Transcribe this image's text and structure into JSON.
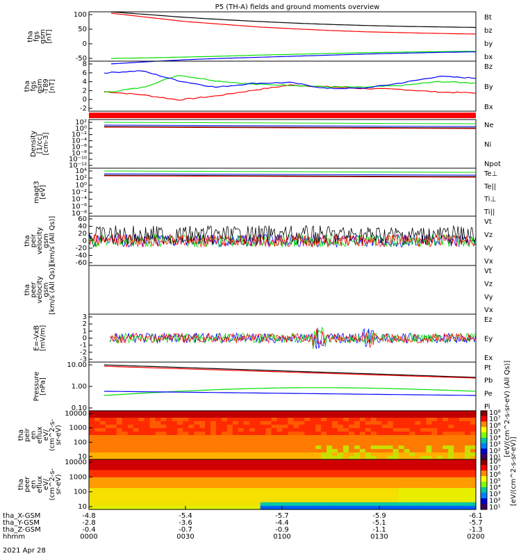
{
  "title": "P5 (TH-A) fields and ground moments overview",
  "date": "2021 Apr 28",
  "colors": {
    "black": "#000000",
    "red": "#ff0000",
    "green": "#00dd00",
    "blue": "#0000ff"
  },
  "xaxis": {
    "rows": [
      {
        "label": "tha_X-GSM",
        "values": [
          "-4.8",
          "-5.4",
          "-5.7",
          "-5.9",
          "-6.1"
        ]
      },
      {
        "label": "tha_Y-GSM",
        "values": [
          "-2.8",
          "-3.6",
          "-4.4",
          "-5.1",
          "-5.7"
        ]
      },
      {
        "label": "tha_Z-GSM",
        "values": [
          "-0.4",
          "-0.7",
          "-0.9",
          "-1.1",
          "-1.3"
        ]
      },
      {
        "label": "hhmm",
        "values": [
          "0000",
          "0030",
          "0100",
          "0130",
          "0200"
        ]
      }
    ]
  },
  "chart_data": [
    {
      "id": "fgs",
      "type": "line",
      "ylabel": [
        "tha",
        "fgs",
        "gsm",
        "[nT]"
      ],
      "yticks": [
        "100",
        "50",
        "0",
        "-50"
      ],
      "ylim": [
        -70,
        110
      ],
      "legend": [
        "Bt",
        "bz",
        "by",
        "bx"
      ],
      "series": [
        {
          "name": "Bt",
          "values": [
            110,
            100,
            90,
            82,
            75,
            69,
            64,
            60,
            57,
            55,
            53
          ]
        },
        {
          "name": "bz",
          "values": [
            105,
            90,
            75,
            65,
            55,
            48,
            42,
            37,
            34,
            31,
            29
          ]
        },
        {
          "name": "by",
          "values": [
            -60,
            -58,
            -55,
            -52,
            -48,
            -45,
            -42,
            -39,
            -37,
            -35,
            -34
          ]
        },
        {
          "name": "bx",
          "values": [
            -80,
            -72,
            -65,
            -60,
            -56,
            -52,
            -48,
            -44,
            -41,
            -38,
            -36
          ]
        }
      ]
    },
    {
      "id": "fgs-t89",
      "type": "line",
      "ylabel": [
        "tha",
        "fgs",
        "gsm",
        "-T89",
        "[nT]"
      ],
      "yticks": [
        "8",
        "6",
        "4",
        "2",
        "0",
        "-2"
      ],
      "ylim": [
        -3,
        8.5
      ],
      "legend": [
        "Bz",
        "By",
        "Bx"
      ],
      "series": [
        {
          "name": "Bz",
          "values": [
            1.5,
            0.8,
            -0.4,
            0.5,
            1.8,
            3.0,
            2.6,
            2.2,
            2.0,
            1.4,
            1.2
          ]
        },
        {
          "name": "By",
          "values": [
            1.3,
            2.4,
            5.3,
            4.0,
            3.2,
            3.0,
            2.6,
            2.5,
            2.9,
            3.8,
            3.5
          ]
        },
        {
          "name": "Bx",
          "values": [
            5.8,
            6.3,
            4.0,
            2.5,
            3.4,
            3.6,
            2.2,
            2.3,
            3.5,
            5.0,
            4.6
          ]
        }
      ]
    },
    {
      "id": "density",
      "type": "line",
      "ylabel": [
        "Density",
        "[1/cc]",
        "[cm-3]"
      ],
      "yticks": [
        "10²",
        "10⁰",
        "10⁻²",
        "10⁻⁴",
        "10⁻⁶",
        "10⁻⁸",
        "10⁻¹⁰",
        "10⁻¹²"
      ],
      "legend": [
        "Ne",
        "Ni",
        "Npot"
      ]
    },
    {
      "id": "temperature",
      "type": "line",
      "ylabel": [
        "magt3",
        "[eV]"
      ],
      "yticks": [
        "10⁴",
        "10²",
        "10⁰",
        "10⁻²",
        "10⁻⁴",
        "10⁻⁶",
        "10⁻⁸"
      ],
      "legend": [
        "Te⊥",
        "Te||",
        "Ti⊥",
        "Ti||"
      ]
    },
    {
      "id": "peir-velocity",
      "type": "line",
      "ylabel": [
        "tha",
        "peir",
        "velocity",
        "gsm",
        "[km/s (All Qs)]"
      ],
      "yticks": [
        "60",
        "40",
        "20",
        "0",
        "-20",
        "-40",
        "-60"
      ],
      "ylim": [
        -60,
        60
      ],
      "legend": [
        "Vt",
        "Vz",
        "Vy",
        "Vx"
      ]
    },
    {
      "id": "peer-velocity",
      "type": "line",
      "ylabel": [
        "tha",
        "peer",
        "velocity",
        "gsm",
        "[km/s (All Qs)]"
      ],
      "yticks": [],
      "legend": [
        "Vt",
        "Vz",
        "Vy",
        "Vx"
      ]
    },
    {
      "id": "e-field",
      "type": "line",
      "ylabel": [
        "E=-VxB",
        "[mV/m]"
      ],
      "yticks": [
        "3",
        "2",
        "1",
        "0",
        "-1",
        "-2",
        "-3"
      ],
      "ylim": [
        -3,
        3
      ],
      "legend": [
        "Ez",
        "Ey",
        "Ex"
      ]
    },
    {
      "id": "pressure",
      "type": "line",
      "ylabel": [
        "Pressure",
        "[nPa]"
      ],
      "yticks": [
        "10.00",
        "1.00",
        "0.10"
      ],
      "legend": [
        "Pt",
        "Pb",
        "Pe",
        "Pi"
      ]
    },
    {
      "id": "peir-spec",
      "type": "heatmap",
      "ylabel": [
        "tha",
        "peir",
        "en",
        "eflux",
        "eV/",
        "(cm^2-s-",
        "sr-eV)"
      ],
      "yticks": [
        "10000",
        "1000",
        "100",
        "10"
      ]
    },
    {
      "id": "peer-spec",
      "type": "heatmap",
      "ylabel": [
        "tha",
        "peer",
        "en",
        "eflux",
        "eV/",
        "(cm^2-s-",
        "sr-eV)"
      ],
      "yticks": [
        "10000",
        "1000",
        "100",
        "10"
      ]
    }
  ],
  "colorbar": {
    "ticks": [
      "10⁸",
      "10⁷",
      "10⁶",
      "10⁵",
      "10⁴",
      "10³",
      "10²",
      "10¹"
    ],
    "label": "[eV/(cm^2-s-sr-eV)]",
    "label_alt": "[eV/(cm^2-s-sr-eV) (All Qs)]"
  }
}
